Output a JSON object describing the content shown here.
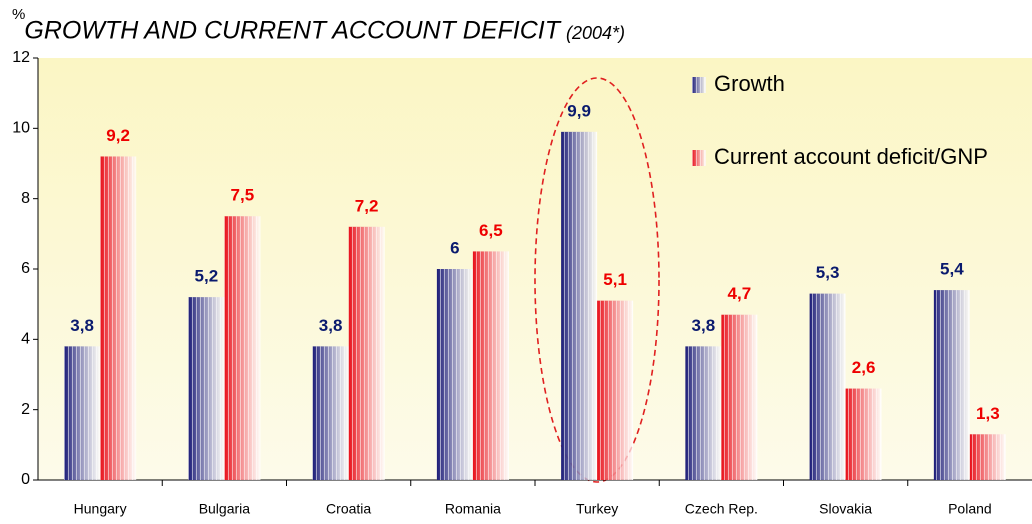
{
  "chart_data": {
    "type": "bar",
    "title": "GROWTH AND CURRENT ACCOUNT DEFICIT",
    "subtitle": "(2004*)",
    "y_label": "%",
    "categories": [
      "Hungary",
      "Bulgaria",
      "Croatia",
      "Romania",
      "Turkey",
      "Czech Rep.",
      "Slovakia",
      "Poland"
    ],
    "series": [
      {
        "name": "Growth",
        "color": "#1c1c78",
        "label_color": "#0a1a6e",
        "values": [
          3.8,
          5.2,
          3.8,
          6,
          9.9,
          3.8,
          5.3,
          5.4
        ],
        "value_labels": [
          "3,8",
          "5,2",
          "3,8",
          "6",
          "9,9",
          "3,8",
          "5,3",
          "5,4"
        ]
      },
      {
        "name": "Current account deficit/GNP",
        "color": "#e8101a",
        "label_color": "#ee0000",
        "values": [
          9.2,
          7.5,
          7.2,
          6.5,
          5.1,
          4.7,
          2.6,
          1.3
        ],
        "value_labels": [
          "9,2",
          "7,5",
          "7,2",
          "6,5",
          "5,1",
          "4,7",
          "2,6",
          "1,3"
        ]
      }
    ],
    "ylim": [
      0,
      12
    ],
    "yticks": [
      0,
      2,
      4,
      6,
      8,
      10,
      12
    ],
    "grid": false,
    "legend": "top-right"
  }
}
